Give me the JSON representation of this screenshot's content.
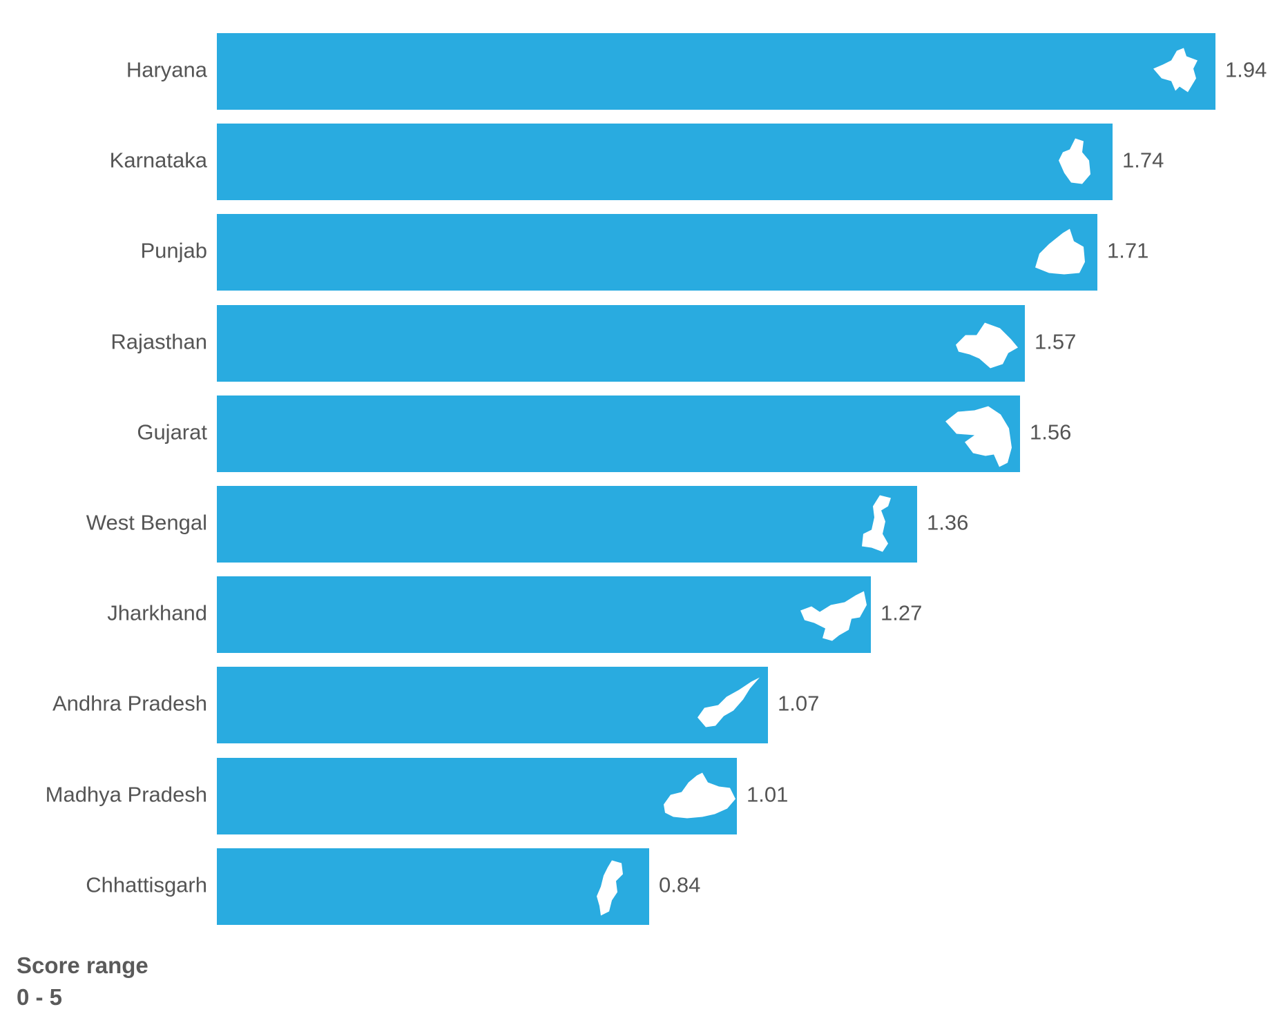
{
  "chart_data": {
    "type": "bar",
    "orientation": "horizontal",
    "categories": [
      "Haryana",
      "Karnataka",
      "Punjab",
      "Rajasthan",
      "Gujarat",
      "West Bengal",
      "Jharkhand",
      "Andhra Pradesh",
      "Madhya Pradesh",
      "Chhattisgarh"
    ],
    "values": [
      1.94,
      1.74,
      1.71,
      1.57,
      1.56,
      1.36,
      1.27,
      1.07,
      1.01,
      0.84
    ],
    "value_labels": [
      "1.94",
      "1.74",
      "1.71",
      "1.57",
      "1.56",
      "1.36",
      "1.27",
      "1.07",
      "1.01",
      "0.84"
    ],
    "icons": [
      "haryana-map-icon",
      "karnataka-map-icon",
      "punjab-map-icon",
      "rajasthan-map-icon",
      "gujarat-map-icon",
      "west-bengal-map-icon",
      "jharkhand-map-icon",
      "andhra-pradesh-map-icon",
      "madhya-pradesh-map-icon",
      "chhattisgarh-map-icon"
    ],
    "xlim": [
      0,
      1.94
    ],
    "bar_color": "#29abe0",
    "icon_color": "#ffffff",
    "label_color": "#555555",
    "grid": false,
    "legend": "none"
  },
  "footer": {
    "title": "Score range",
    "range": "0 - 5"
  }
}
